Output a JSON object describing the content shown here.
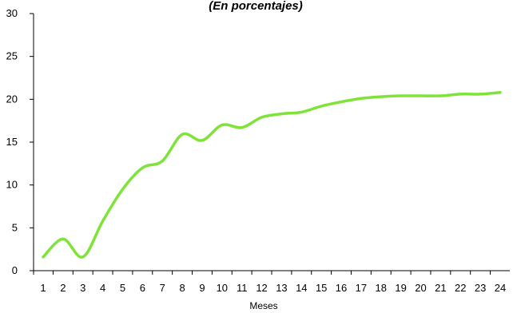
{
  "chart_data": {
    "type": "line",
    "title": "(En porcentajes)",
    "xlabel": "Meses",
    "ylabel": "",
    "categories": [
      "1",
      "2",
      "3",
      "4",
      "5",
      "6",
      "7",
      "8",
      "9",
      "10",
      "11",
      "12",
      "13",
      "14",
      "15",
      "16",
      "17",
      "18",
      "19",
      "20",
      "21",
      "22",
      "23",
      "24"
    ],
    "series": [
      {
        "values": [
          1.6,
          3.7,
          1.6,
          5.8,
          9.5,
          12.0,
          12.8,
          15.9,
          15.2,
          17.0,
          16.7,
          17.9,
          18.3,
          18.5,
          19.2,
          19.7,
          20.1,
          20.3,
          20.4,
          20.4,
          20.4,
          20.6,
          20.6,
          20.8
        ],
        "color": "#7fe33a"
      }
    ],
    "ylim": [
      0,
      30
    ],
    "yticks": [
      0,
      5,
      10,
      15,
      20,
      25,
      30
    ],
    "grid": false,
    "legend": "none"
  }
}
